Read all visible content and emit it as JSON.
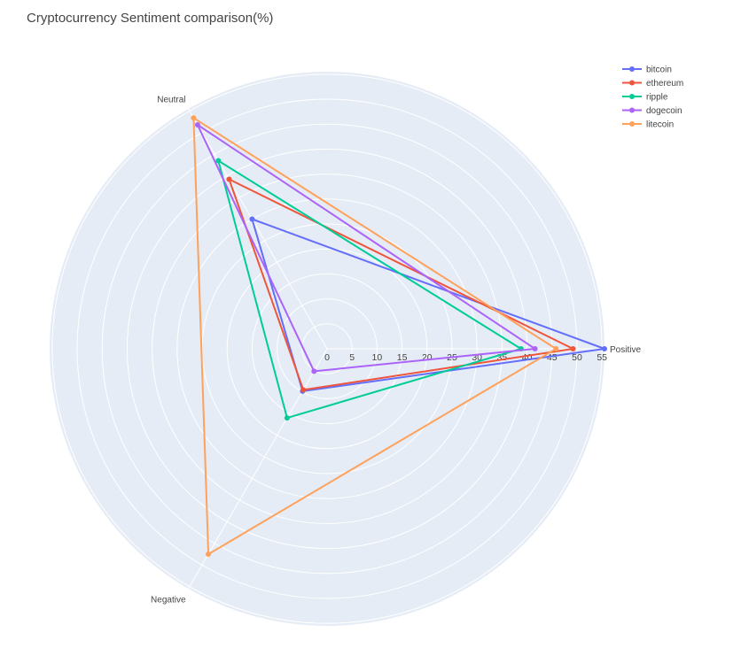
{
  "chart_data": {
    "type": "radar",
    "title": "Cryptocurrency Sentiment comparison(%)",
    "axes": [
      "Positive",
      "Neutral",
      "Negative"
    ],
    "radial_range": [
      0,
      55.5
    ],
    "radial_ticks": [
      0,
      5,
      10,
      15,
      20,
      25,
      30,
      35,
      40,
      45,
      50,
      55
    ],
    "legend_position": "top-right",
    "series": [
      {
        "name": "bitcoin",
        "color": "#636efa",
        "values": [
          55.5,
          30.0,
          9.8
        ]
      },
      {
        "name": "ethereum",
        "color": "#ef553b",
        "values": [
          49.2,
          39.2,
          9.5
        ]
      },
      {
        "name": "ripple",
        "color": "#00cc96",
        "values": [
          38.8,
          43.5,
          16.0
        ]
      },
      {
        "name": "dogecoin",
        "color": "#ab63fa",
        "values": [
          41.6,
          51.8,
          5.2
        ]
      },
      {
        "name": "litecoin",
        "color": "#ffa15a",
        "values": [
          45.8,
          53.4,
          47.5
        ]
      }
    ]
  }
}
